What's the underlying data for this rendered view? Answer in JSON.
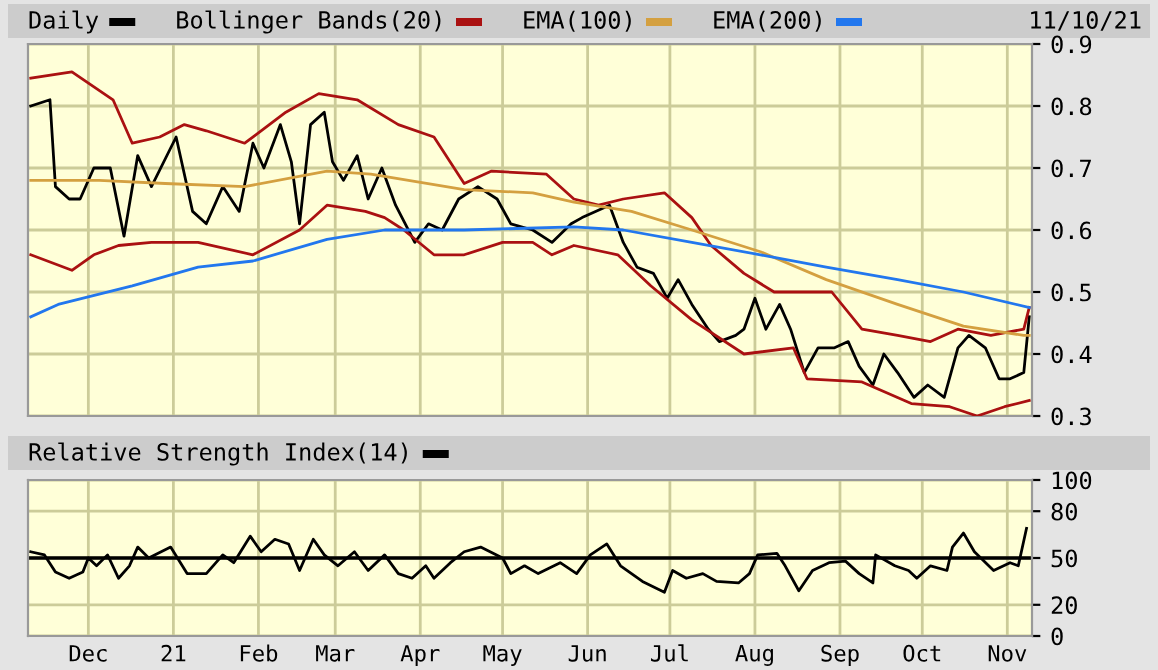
{
  "chart_data": [
    {
      "type": "line",
      "legend": "top",
      "grid": true,
      "tick_labels": "y",
      "marker": "none",
      "line_style": "solid",
      "annotations": [
        "11/10/21"
      ],
      "xlim": [
        "2020-11-09",
        "2021-11-10"
      ],
      "xticks": [
        {
          "value": "2020-12-01",
          "label": null
        },
        {
          "value": "2021-01-01",
          "label": null
        },
        {
          "value": "2021-02-01",
          "label": null
        },
        {
          "value": "2021-03-01",
          "label": null
        },
        {
          "value": "2021-04-01",
          "label": null
        },
        {
          "value": "2021-05-01",
          "label": null
        },
        {
          "value": "2021-06-01",
          "label": null
        },
        {
          "value": "2021-07-01",
          "label": null
        },
        {
          "value": "2021-08-01",
          "label": null
        },
        {
          "value": "2021-09-01",
          "label": null
        },
        {
          "value": "2021-10-01",
          "label": null
        },
        {
          "value": "2021-11-01",
          "label": null
        }
      ],
      "ylim": [
        0.3,
        0.9
      ],
      "yticks": [
        0.3,
        0.4,
        0.5,
        0.6,
        0.7,
        0.8,
        0.9
      ],
      "series": [
        {
          "name": "Daily",
          "color": "#000000",
          "x": [
            "2020-11-10",
            "2020-11-17",
            "2020-11-19",
            "2020-11-24",
            "2020-11-28",
            "2020-12-03",
            "2020-12-09",
            "2020-12-14",
            "2020-12-19",
            "2020-12-24",
            "2021-01-02",
            "2021-01-08",
            "2021-01-13",
            "2021-01-19",
            "2021-01-25",
            "2021-01-30",
            "2021-02-03",
            "2021-02-09",
            "2021-02-13",
            "2021-02-16",
            "2021-02-20",
            "2021-02-25",
            "2021-02-28",
            "2021-03-04",
            "2021-03-09",
            "2021-03-13",
            "2021-03-18",
            "2021-03-23",
            "2021-03-30",
            "2021-04-04",
            "2021-04-09",
            "2021-04-15",
            "2021-04-22",
            "2021-04-29",
            "2021-05-04",
            "2021-05-12",
            "2021-05-19",
            "2021-05-26",
            "2021-05-30",
            "2021-06-09",
            "2021-06-14",
            "2021-06-19",
            "2021-06-25",
            "2021-06-30",
            "2021-07-04",
            "2021-07-09",
            "2021-07-15",
            "2021-07-19",
            "2021-07-25",
            "2021-07-28",
            "2021-08-01",
            "2021-08-05",
            "2021-08-10",
            "2021-08-14",
            "2021-08-19",
            "2021-08-24",
            "2021-08-30",
            "2021-09-04",
            "2021-09-08",
            "2021-09-13",
            "2021-09-17",
            "2021-09-22",
            "2021-09-28",
            "2021-10-03",
            "2021-10-09",
            "2021-10-14",
            "2021-10-18",
            "2021-10-24",
            "2021-10-29",
            "2021-11-02",
            "2021-11-07",
            "2021-11-09"
          ],
          "values": [
            0.8,
            0.81,
            0.67,
            0.65,
            0.65,
            0.7,
            0.7,
            0.59,
            0.72,
            0.67,
            0.75,
            0.63,
            0.61,
            0.67,
            0.63,
            0.74,
            0.7,
            0.77,
            0.71,
            0.61,
            0.77,
            0.79,
            0.71,
            0.68,
            0.72,
            0.65,
            0.7,
            0.64,
            0.58,
            0.61,
            0.6,
            0.65,
            0.67,
            0.65,
            0.61,
            0.6,
            0.58,
            0.61,
            0.62,
            0.64,
            0.58,
            0.54,
            0.53,
            0.49,
            0.52,
            0.48,
            0.44,
            0.42,
            0.43,
            0.44,
            0.49,
            0.44,
            0.48,
            0.44,
            0.37,
            0.41,
            0.41,
            0.42,
            0.38,
            0.35,
            0.4,
            0.37,
            0.33,
            0.35,
            0.33,
            0.41,
            0.43,
            0.41,
            0.36,
            0.36,
            0.37,
            0.46
          ]
        },
        {
          "name": "Bollinger Bands(20)",
          "color": "#aa1111",
          "x": [
            "2020-11-10",
            "2020-11-25",
            "2020-12-10",
            "2020-12-17",
            "2020-12-27",
            "2021-01-05",
            "2021-01-13",
            "2021-01-27",
            "2021-02-11",
            "2021-02-23",
            "2021-03-09",
            "2021-03-24",
            "2021-04-06",
            "2021-04-17",
            "2021-04-27",
            "2021-05-17",
            "2021-05-27",
            "2021-06-05",
            "2021-06-14",
            "2021-06-29",
            "2021-07-09",
            "2021-07-16",
            "2021-07-28",
            "2021-08-08",
            "2021-08-17",
            "2021-08-29",
            "2021-09-09",
            "2021-09-22",
            "2021-10-04",
            "2021-10-14",
            "2021-10-26",
            "2021-11-07",
            "2021-11-09"
          ],
          "values": [
            0.845,
            0.855,
            0.81,
            0.74,
            0.75,
            0.77,
            0.76,
            0.74,
            0.79,
            0.82,
            0.81,
            0.77,
            0.75,
            0.675,
            0.695,
            0.69,
            0.65,
            0.64,
            0.65,
            0.66,
            0.62,
            0.575,
            0.53,
            0.5,
            0.5,
            0.5,
            0.44,
            0.43,
            0.42,
            0.44,
            0.43,
            0.44,
            0.475
          ]
        },
        {
          "color": "#aa1111",
          "x": [
            "2020-11-10",
            "2020-11-25",
            "2020-12-03",
            "2020-12-12",
            "2020-12-24",
            "2021-01-10",
            "2021-01-30",
            "2021-02-16",
            "2021-02-26",
            "2021-03-12",
            "2021-03-19",
            "2021-03-26",
            "2021-04-06",
            "2021-04-17",
            "2021-05-01",
            "2021-05-12",
            "2021-05-19",
            "2021-05-27",
            "2021-06-12",
            "2021-06-24",
            "2021-07-09",
            "2021-07-28",
            "2021-08-15",
            "2021-08-20",
            "2021-09-09",
            "2021-09-27",
            "2021-10-11",
            "2021-10-21",
            "2021-10-31",
            "2021-11-09"
          ],
          "values": [
            0.56,
            0.535,
            0.56,
            0.575,
            0.58,
            0.58,
            0.56,
            0.6,
            0.64,
            0.63,
            0.62,
            0.6,
            0.56,
            0.56,
            0.58,
            0.58,
            0.56,
            0.575,
            0.56,
            0.51,
            0.455,
            0.4,
            0.41,
            0.36,
            0.355,
            0.32,
            0.315,
            0.3,
            0.315,
            0.325
          ]
        },
        {
          "name": "EMA(100)",
          "color": "#d4a040",
          "x": [
            "2020-11-10",
            "2020-12-05",
            "2020-12-29",
            "2021-01-27",
            "2021-02-26",
            "2021-03-14",
            "2021-04-17",
            "2021-05-12",
            "2021-05-27",
            "2021-06-17",
            "2021-07-09",
            "2021-08-03",
            "2021-08-27",
            "2021-09-22",
            "2021-10-16",
            "2021-11-07",
            "2021-11-09"
          ],
          "values": [
            0.68,
            0.68,
            0.675,
            0.67,
            0.695,
            0.69,
            0.665,
            0.66,
            0.645,
            0.63,
            0.6,
            0.565,
            0.52,
            0.48,
            0.445,
            0.43,
            0.43
          ]
        },
        {
          "name": "EMA(200)",
          "color": "#2277ee",
          "x": [
            "2020-11-10",
            "2020-11-20",
            "2020-12-17",
            "2021-01-10",
            "2021-01-30",
            "2021-02-26",
            "2021-03-19",
            "2021-04-17",
            "2021-05-27",
            "2021-06-14",
            "2021-07-09",
            "2021-08-03",
            "2021-08-27",
            "2021-09-22",
            "2021-10-16",
            "2021-11-09"
          ],
          "values": [
            0.46,
            0.48,
            0.51,
            0.54,
            0.55,
            0.585,
            0.6,
            0.6,
            0.605,
            0.6,
            0.58,
            0.56,
            0.54,
            0.52,
            0.5,
            0.475
          ]
        }
      ]
    },
    {
      "type": "line",
      "legend": "top",
      "grid": true,
      "marker": "none",
      "line_style": "solid",
      "xlim": [
        "2020-11-09",
        "2021-11-10"
      ],
      "xticks": [
        {
          "value": "2020-12-01",
          "label": "Dec"
        },
        {
          "value": "2021-01-01",
          "label": "21"
        },
        {
          "value": "2021-02-01",
          "label": "Feb"
        },
        {
          "value": "2021-03-01",
          "label": "Mar"
        },
        {
          "value": "2021-04-01",
          "label": "Apr"
        },
        {
          "value": "2021-05-01",
          "label": "May"
        },
        {
          "value": "2021-06-01",
          "label": "Jun"
        },
        {
          "value": "2021-07-01",
          "label": "Jul"
        },
        {
          "value": "2021-08-01",
          "label": "Aug"
        },
        {
          "value": "2021-09-01",
          "label": "Sep"
        },
        {
          "value": "2021-10-01",
          "label": "Oct"
        },
        {
          "value": "2021-11-01",
          "label": "Nov"
        }
      ],
      "ylim": [
        0,
        100
      ],
      "yticks": [
        0,
        20,
        50,
        80,
        100
      ],
      "ref_lines": [
        {
          "axis": "y",
          "value": 50,
          "color": "#000000"
        }
      ],
      "series": [
        {
          "name": "Relative Strength Index(14)",
          "color": "#000000",
          "x": [
            "2020-11-10",
            "2020-11-15",
            "2020-11-19",
            "2020-11-24",
            "2020-11-29",
            "2020-12-01",
            "2020-12-04",
            "2020-12-08",
            "2020-12-12",
            "2020-12-16",
            "2020-12-19",
            "2020-12-23",
            "2020-12-31",
            "2021-01-06",
            "2021-01-13",
            "2021-01-19",
            "2021-01-23",
            "2021-01-29",
            "2021-02-02",
            "2021-02-07",
            "2021-02-12",
            "2021-02-16",
            "2021-02-21",
            "2021-02-25",
            "2021-03-02",
            "2021-03-08",
            "2021-03-13",
            "2021-03-19",
            "2021-03-24",
            "2021-03-29",
            "2021-04-03",
            "2021-04-06",
            "2021-04-12",
            "2021-04-17",
            "2021-04-23",
            "2021-05-01",
            "2021-05-04",
            "2021-05-09",
            "2021-05-14",
            "2021-05-22",
            "2021-05-28",
            "2021-06-02",
            "2021-06-08",
            "2021-06-13",
            "2021-06-21",
            "2021-06-29",
            "2021-07-02",
            "2021-07-07",
            "2021-07-13",
            "2021-07-18",
            "2021-07-26",
            "2021-07-30",
            "2021-08-02",
            "2021-08-09",
            "2021-08-12",
            "2021-08-17",
            "2021-08-22",
            "2021-08-28",
            "2021-09-03",
            "2021-09-08",
            "2021-09-13",
            "2021-09-14",
            "2021-09-21",
            "2021-09-26",
            "2021-09-29",
            "2021-10-04",
            "2021-10-10",
            "2021-10-12",
            "2021-10-16",
            "2021-10-20",
            "2021-10-27",
            "2021-11-02",
            "2021-11-05",
            "2021-11-08"
          ],
          "values": [
            54,
            52,
            41,
            37,
            41,
            50,
            45,
            52,
            37,
            45,
            57,
            50,
            57,
            40,
            40,
            52,
            47,
            64,
            54,
            62,
            59,
            42,
            62,
            52,
            45,
            54,
            42,
            52,
            40,
            37,
            45,
            37,
            47,
            54,
            57,
            50,
            40,
            45,
            40,
            47,
            40,
            52,
            59,
            45,
            35,
            28,
            42,
            37,
            40,
            35,
            34,
            40,
            52,
            53,
            45,
            29,
            42,
            47,
            48,
            40,
            34,
            52,
            45,
            42,
            37,
            45,
            42,
            57,
            66,
            54,
            42,
            47,
            45,
            69
          ]
        }
      ]
    }
  ]
}
